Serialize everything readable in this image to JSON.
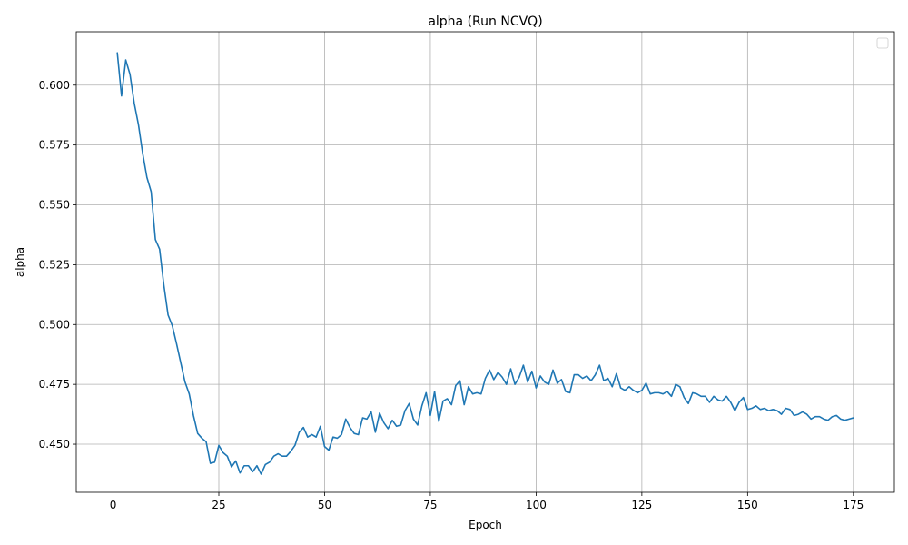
{
  "chart_data": {
    "type": "line",
    "title": "alpha (Run NCVQ)",
    "xlabel": "Epoch",
    "ylabel": "alpha",
    "xlim": [
      -8.7,
      184.7
    ],
    "ylim": [
      0.4299,
      0.6223
    ],
    "xticks": [
      0,
      25,
      50,
      75,
      100,
      125,
      150,
      175
    ],
    "xtick_labels": [
      "0",
      "25",
      "50",
      "75",
      "100",
      "125",
      "150",
      "175"
    ],
    "yticks": [
      0.45,
      0.475,
      0.5,
      0.525,
      0.55,
      0.575,
      0.6
    ],
    "ytick_labels": [
      "0.450",
      "0.475",
      "0.500",
      "0.525",
      "0.550",
      "0.575",
      "0.600"
    ],
    "grid": true,
    "legend": "top-right (empty)",
    "series_color": "#1f77b4",
    "x": [
      1,
      2,
      3,
      4,
      5,
      6,
      7,
      8,
      9,
      10,
      11,
      12,
      13,
      14,
      15,
      16,
      17,
      18,
      19,
      20,
      21,
      22,
      23,
      24,
      25,
      26,
      27,
      28,
      29,
      30,
      31,
      32,
      33,
      34,
      35,
      36,
      37,
      38,
      39,
      40,
      41,
      42,
      43,
      44,
      45,
      46,
      47,
      48,
      49,
      50,
      51,
      52,
      53,
      54,
      55,
      56,
      57,
      58,
      59,
      60,
      61,
      62,
      63,
      64,
      65,
      66,
      67,
      68,
      69,
      70,
      71,
      72,
      73,
      74,
      75,
      76,
      77,
      78,
      79,
      80,
      81,
      82,
      83,
      84,
      85,
      86,
      87,
      88,
      89,
      90,
      91,
      92,
      93,
      94,
      95,
      96,
      97,
      98,
      99,
      100,
      101,
      102,
      103,
      104,
      105,
      106,
      107,
      108,
      109,
      110,
      111,
      112,
      113,
      114,
      115,
      116,
      117,
      118,
      119,
      120,
      121,
      122,
      123,
      124,
      125,
      126,
      127,
      128,
      129,
      130,
      131,
      132,
      133,
      134,
      135,
      136,
      137,
      138,
      139,
      140,
      141,
      142,
      143,
      144,
      145,
      146,
      147,
      148,
      149,
      150,
      151,
      152,
      153,
      154,
      155,
      156,
      157,
      158,
      159,
      160,
      161,
      162,
      163,
      164,
      165,
      166,
      167,
      168,
      169,
      170,
      171,
      172,
      173,
      174,
      175
    ],
    "values": [
      0.6135,
      0.5955,
      0.6105,
      0.6045,
      0.5925,
      0.5835,
      0.5715,
      0.5615,
      0.5555,
      0.5355,
      0.5315,
      0.5165,
      0.504,
      0.4995,
      0.492,
      0.484,
      0.476,
      0.471,
      0.462,
      0.4545,
      0.4525,
      0.451,
      0.442,
      0.4425,
      0.4495,
      0.4465,
      0.445,
      0.4405,
      0.443,
      0.438,
      0.441,
      0.441,
      0.4385,
      0.441,
      0.4375,
      0.4415,
      0.4425,
      0.445,
      0.446,
      0.445,
      0.445,
      0.447,
      0.4495,
      0.455,
      0.457,
      0.453,
      0.454,
      0.453,
      0.4575,
      0.449,
      0.4475,
      0.453,
      0.4525,
      0.454,
      0.4605,
      0.457,
      0.4545,
      0.454,
      0.461,
      0.4605,
      0.4635,
      0.455,
      0.463,
      0.459,
      0.4565,
      0.46,
      0.4575,
      0.458,
      0.464,
      0.467,
      0.4605,
      0.458,
      0.466,
      0.4715,
      0.462,
      0.472,
      0.4595,
      0.468,
      0.469,
      0.4665,
      0.4745,
      0.4765,
      0.4665,
      0.474,
      0.471,
      0.4715,
      0.471,
      0.4775,
      0.481,
      0.477,
      0.48,
      0.478,
      0.475,
      0.4815,
      0.475,
      0.478,
      0.483,
      0.476,
      0.4805,
      0.4735,
      0.4785,
      0.476,
      0.475,
      0.481,
      0.4755,
      0.477,
      0.472,
      0.4715,
      0.479,
      0.479,
      0.4775,
      0.4785,
      0.4765,
      0.479,
      0.483,
      0.4765,
      0.4775,
      0.474,
      0.4795,
      0.4735,
      0.4725,
      0.474,
      0.4725,
      0.4715,
      0.4725,
      0.4755,
      0.471,
      0.4715,
      0.4715,
      0.471,
      0.472,
      0.47,
      0.475,
      0.474,
      0.4695,
      0.467,
      0.4715,
      0.471,
      0.47,
      0.47,
      0.4675,
      0.47,
      0.4685,
      0.468,
      0.47,
      0.4675,
      0.464,
      0.4675,
      0.4695,
      0.4645,
      0.465,
      0.466,
      0.4645,
      0.465,
      0.464,
      0.4645,
      0.464,
      0.4625,
      0.465,
      0.4645,
      0.462,
      0.4625,
      0.4635,
      0.4625,
      0.4605,
      0.4615,
      0.4615,
      0.4605,
      0.46,
      0.4615,
      0.462,
      0.4605,
      0.46,
      0.4605,
      0.461
    ]
  }
}
